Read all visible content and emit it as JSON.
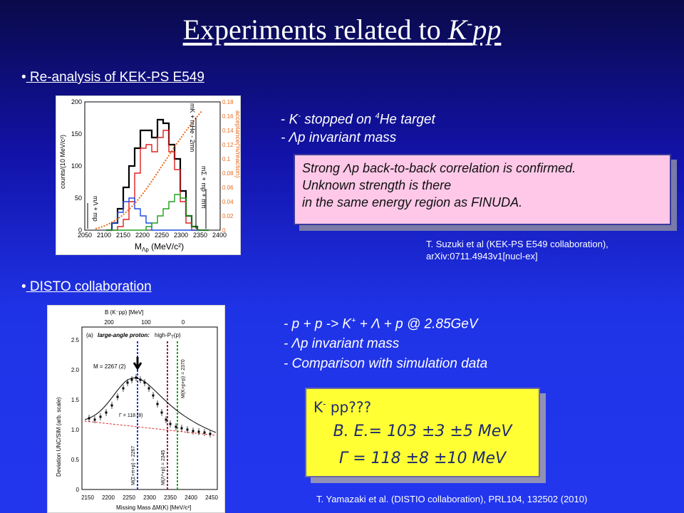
{
  "title": {
    "main": "Experiments related to ",
    "k": "K",
    "sup": "-",
    "pp": "pp"
  },
  "section1": {
    "bullet": "•",
    "heading": " Re-analysis of KEK-PS E549",
    "line1_pre": "- ",
    "line1_k": "K",
    "line1_sup": "-",
    "line1_mid": " stopped on ",
    "line1_sup4": "4",
    "line1_post": "He target",
    "line2": "- Λp invariant mass",
    "box": {
      "line1": "Strong Λp back-to-back correlation is confirmed.",
      "line2": "Unknown strength is there",
      "line3": "in the same energy region as FINUDA."
    },
    "ref": {
      "line1": "T. Suzuki et al (KEK-PS E549 collaboration),",
      "line2": "arXiv:0711.4943v1[nucl-ex]"
    },
    "figure": {
      "ylabel_left": "counts/(10 MeV/c²)",
      "ylabel_right": "acceptance(%/reaction)",
      "xlabel": "M",
      "xlabel_sub": "Λp",
      "xlabel_unit": " (MeV/c²)",
      "xticks": [
        "2050",
        "2100",
        "2150",
        "2200",
        "2250",
        "2300",
        "2350",
        "2400"
      ],
      "yticks_left": [
        "0",
        "50",
        "100",
        "150",
        "200"
      ],
      "yticks_right": [
        "0",
        "0.02",
        "0.04",
        "0.06",
        "0.08",
        "0.1",
        "0.12",
        "0.14",
        "0.16",
        "0.18"
      ],
      "label_thresh1": "mΛ + mp",
      "label_thresh2": "mK + mHe - 2mn",
      "label_thresh3": "mΣ + mp + mπ"
    }
  },
  "section2": {
    "bullet": "•",
    "heading": " DISTO collaboration",
    "line1": "- p + p -> K",
    "line1_sup": "+",
    "line1_post": " + Λ + p @ 2.85GeV",
    "line2": "- Λp invariant mass",
    "line3": "- Comparison with simulation data",
    "box": {
      "line1_k": "K",
      "line1_sup": "-",
      "line1_post": " pp???",
      "line2": "B. E.= 103 ±3 ±5 MeV",
      "line3": "Γ = 118 ±8 ±10 MeV"
    },
    "ref": "T. Yamazaki et al. (DISTIO collaboration), PRL104, 132502 (2010)",
    "figure": {
      "top_axis_label": "B (K⁻pp) [MeV]",
      "top_ticks": [
        "200",
        "100",
        "0"
      ],
      "panel_label": "(a)",
      "panel_title": "large-angle proton:",
      "panel_title2": "high-P",
      "panel_title2_sub": "T",
      "panel_title2_post": "(p)",
      "mass_label": "M = 2267 (2)",
      "width_label": "Γ = 118 (8)",
      "ylabel": "Deviation UNC/SIM  (arb. scale)",
      "yticks": [
        "0",
        "0.5",
        "1.0",
        "1.5",
        "2.0",
        "2.5"
      ],
      "xticks": [
        "2150",
        "2200",
        "2250",
        "2300",
        "2350",
        "2400",
        "2450"
      ],
      "xlabel": "Missing Mass  ΔM(K) [MeV/c²]",
      "vline1": "M(Σ+π+p) = 2267",
      "vline2": "M(Λ*+p) = 2345",
      "vline3": "M(K+p+p) = 2370"
    }
  }
}
